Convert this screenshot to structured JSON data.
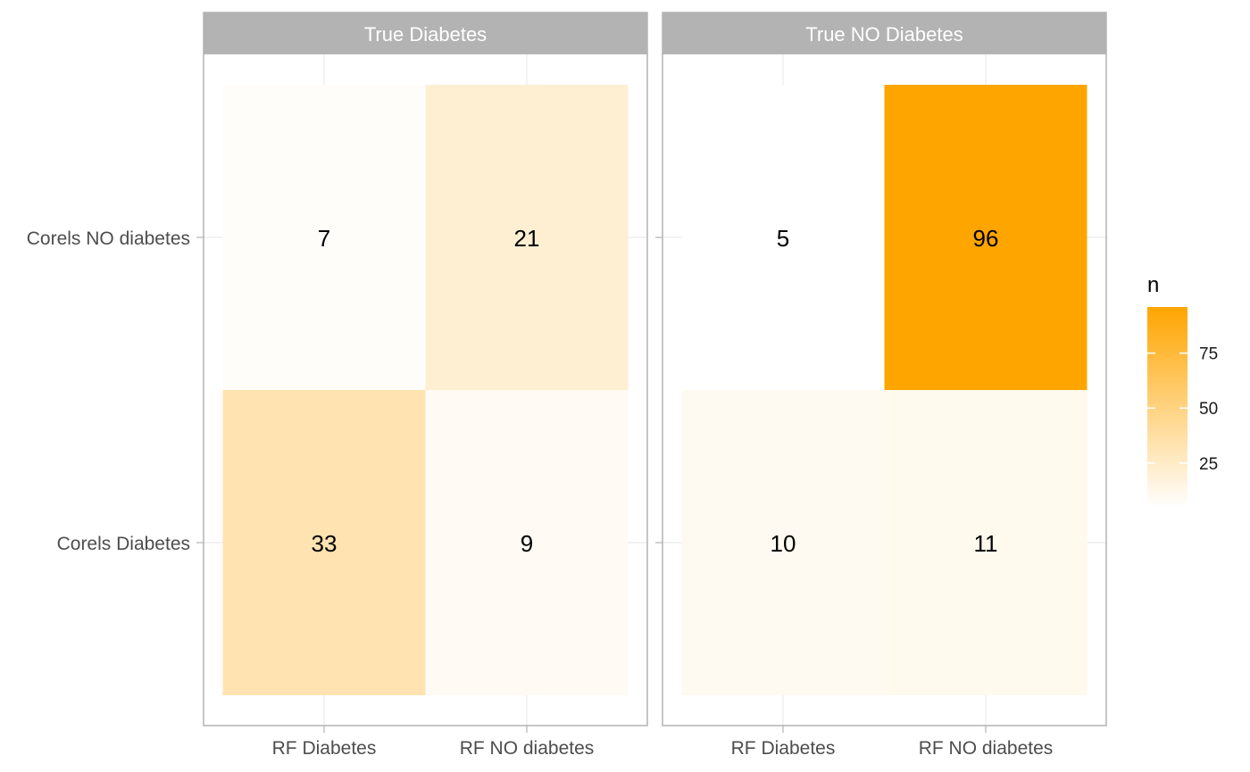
{
  "chart_data": {
    "type": "heatmap",
    "facets": [
      "True Diabetes",
      "True NO Diabetes"
    ],
    "x_categories": [
      "RF Diabetes",
      "RF NO diabetes"
    ],
    "y_categories": [
      "Corels Diabetes",
      "Corels NO diabetes"
    ],
    "cells": [
      {
        "facet": "True Diabetes",
        "x": "RF Diabetes",
        "y": "Corels NO diabetes",
        "n": 7
      },
      {
        "facet": "True Diabetes",
        "x": "RF NO diabetes",
        "y": "Corels NO diabetes",
        "n": 21
      },
      {
        "facet": "True Diabetes",
        "x": "RF Diabetes",
        "y": "Corels Diabetes",
        "n": 33
      },
      {
        "facet": "True Diabetes",
        "x": "RF NO diabetes",
        "y": "Corels Diabetes",
        "n": 9
      },
      {
        "facet": "True NO Diabetes",
        "x": "RF Diabetes",
        "y": "Corels NO diabetes",
        "n": 5
      },
      {
        "facet": "True NO Diabetes",
        "x": "RF NO diabetes",
        "y": "Corels NO diabetes",
        "n": 96
      },
      {
        "facet": "True NO Diabetes",
        "x": "RF Diabetes",
        "y": "Corels Diabetes",
        "n": 10
      },
      {
        "facet": "True NO Diabetes",
        "x": "RF NO diabetes",
        "y": "Corels Diabetes",
        "n": 11
      }
    ],
    "legend": {
      "title": "n",
      "ticks": [
        25,
        50,
        75
      ],
      "range": [
        5,
        96
      ],
      "low_color": "#ffffff",
      "high_color": "#ffa500"
    },
    "grid": true,
    "legend_position": "right"
  }
}
